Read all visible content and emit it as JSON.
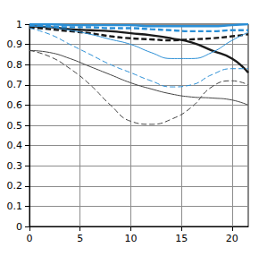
{
  "chart_data": {
    "type": "line",
    "x": [
      0,
      2,
      4,
      6,
      8,
      10,
      12,
      14,
      16,
      18,
      20,
      21.6
    ],
    "series": [
      {
        "color": "#1a1a1a",
        "line_style": "thick-solid",
        "values": [
          0.99,
          0.985,
          0.975,
          0.97,
          0.965,
          0.955,
          0.945,
          0.93,
          0.91,
          0.87,
          0.83,
          0.76
        ]
      },
      {
        "color": "#1a1a1a",
        "line_style": "thick-dashed",
        "values": [
          0.985,
          0.975,
          0.965,
          0.955,
          0.94,
          0.93,
          0.925,
          0.92,
          0.925,
          0.93,
          0.94,
          0.95
        ]
      },
      {
        "color": "#2b8fd6",
        "line_style": "thick-solid",
        "values": [
          1.0,
          1.0,
          0.995,
          0.995,
          0.995,
          0.995,
          0.99,
          0.99,
          0.99,
          0.99,
          0.995,
          1.0
        ]
      },
      {
        "color": "#2b8fd6",
        "line_style": "thick-dashed",
        "values": [
          0.995,
          0.99,
          0.985,
          0.985,
          0.98,
          0.98,
          0.975,
          0.97,
          0.965,
          0.965,
          0.97,
          0.97
        ]
      },
      {
        "color": "#444444",
        "line_style": "solid",
        "values": [
          0.87,
          0.86,
          0.83,
          0.79,
          0.75,
          0.71,
          0.68,
          0.655,
          0.64,
          0.635,
          0.625,
          0.6
        ]
      },
      {
        "color": "#444444",
        "line_style": "dashed",
        "values": [
          0.87,
          0.84,
          0.78,
          0.7,
          0.6,
          0.52,
          0.505,
          0.53,
          0.59,
          0.69,
          0.72,
          0.7
        ]
      },
      {
        "color": "#2b8fd6",
        "line_style": "solid",
        "values": [
          0.99,
          0.985,
          0.97,
          0.95,
          0.925,
          0.9,
          0.86,
          0.83,
          0.83,
          0.86,
          0.92,
          0.96
        ]
      },
      {
        "color": "#2b8fd6",
        "line_style": "dashed",
        "values": [
          0.98,
          0.95,
          0.9,
          0.85,
          0.8,
          0.76,
          0.72,
          0.69,
          0.7,
          0.75,
          0.78,
          0.78
        ]
      }
    ],
    "xlim": [
      0,
      21.6
    ],
    "xticks": [
      0,
      5,
      10,
      15,
      20
    ],
    "ylim": [
      0,
      1
    ],
    "yticks": [
      0,
      0.1,
      0.2,
      0.3,
      0.4,
      0.5,
      0.6,
      0.7,
      0.8,
      0.9,
      1
    ],
    "grid": true
  }
}
